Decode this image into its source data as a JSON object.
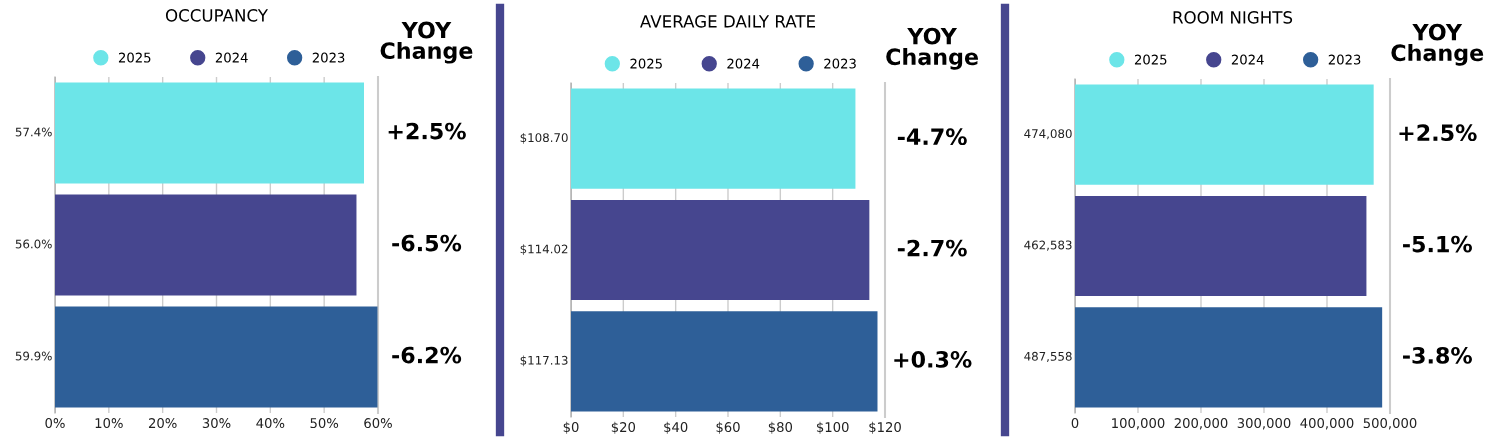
{
  "chart_data": [
    {
      "type": "bar",
      "orientation": "horizontal",
      "title": "OCCUPANCY",
      "categories": [
        null,
        null,
        null
      ],
      "series": [
        {
          "name": "2025",
          "color": "#6ce5e8",
          "values": [
            57.4,
            null,
            null
          ],
          "value_labels": [
            "57.4%",
            null,
            null
          ]
        },
        {
          "name": "2024",
          "color": "#46468f",
          "values": [
            null,
            56.0,
            null
          ],
          "value_labels": [
            null,
            "56.0%",
            null
          ]
        },
        {
          "name": "2023",
          "color": "#2e5f98",
          "values": [
            null,
            null,
            59.9
          ],
          "value_labels": [
            null,
            null,
            "59.9%"
          ]
        }
      ],
      "xlim": [
        0,
        60
      ],
      "xticks": [
        {
          "value": 0,
          "label": "0%"
        },
        {
          "value": 10,
          "label": "10%"
        },
        {
          "value": 20,
          "label": "20%"
        },
        {
          "value": 30,
          "label": "30%"
        },
        {
          "value": 40,
          "label": "40%"
        },
        {
          "value": 50,
          "label": "50%"
        },
        {
          "value": 60,
          "label": "60%"
        }
      ],
      "grid": "x",
      "legend": "top",
      "annotations": [
        "YOY\nChange",
        "+2.5%",
        "-6.5%",
        "-6.2%"
      ]
    },
    {
      "type": "bar",
      "orientation": "horizontal",
      "title": "AVERAGE DAILY RATE",
      "categories": [
        null,
        null,
        null
      ],
      "series": [
        {
          "name": "2025",
          "color": "#6ce5e8",
          "values": [
            108.7,
            null,
            null
          ],
          "value_labels": [
            "$108.70",
            null,
            null
          ]
        },
        {
          "name": "2024",
          "color": "#46468f",
          "values": [
            null,
            114.02,
            null
          ],
          "value_labels": [
            null,
            "$114.02",
            null
          ]
        },
        {
          "name": "2023",
          "color": "#2e5f98",
          "values": [
            null,
            null,
            117.13
          ],
          "value_labels": [
            null,
            null,
            "$117.13"
          ]
        }
      ],
      "xlim": [
        0,
        120
      ],
      "xticks": [
        {
          "value": 0,
          "label": "$0"
        },
        {
          "value": 20,
          "label": "$20"
        },
        {
          "value": 40,
          "label": "$40"
        },
        {
          "value": 60,
          "label": "$60"
        },
        {
          "value": 80,
          "label": "$80"
        },
        {
          "value": 100,
          "label": "$100"
        },
        {
          "value": 120,
          "label": "$120"
        }
      ],
      "grid": "x",
      "legend": "top",
      "annotations": [
        "YOY\nChange",
        "-4.7%",
        "-2.7%",
        "+0.3%"
      ]
    },
    {
      "type": "bar",
      "orientation": "horizontal",
      "title": "ROOM NIGHTS",
      "categories": [
        null,
        null,
        null
      ],
      "series": [
        {
          "name": "2025",
          "color": "#6ce5e8",
          "values": [
            474080,
            null,
            null
          ],
          "value_labels": [
            "474,080",
            null,
            null
          ]
        },
        {
          "name": "2024",
          "color": "#46468f",
          "values": [
            null,
            462583,
            null
          ],
          "value_labels": [
            null,
            "462,583",
            null
          ]
        },
        {
          "name": "2023",
          "color": "#2e5f98",
          "values": [
            null,
            null,
            487558
          ],
          "value_labels": [
            null,
            null,
            "487,558"
          ]
        }
      ],
      "xlim": [
        0,
        500000
      ],
      "xticks": [
        0,
        {
          "value": 100000,
          "label": "100,000"
        },
        {
          "value": 200000,
          "label": "200,000"
        },
        {
          "value": 300000,
          "label": "300,000"
        },
        {
          "value": 400000,
          "label": "400,000"
        },
        {
          "value": 500000,
          "label": "500,000"
        }
      ],
      "grid": "x",
      "legend": "top",
      "annotations": [
        "YOY\nChange",
        "+2.5%",
        "-5.1%",
        "-3.8%"
      ]
    }
  ]
}
